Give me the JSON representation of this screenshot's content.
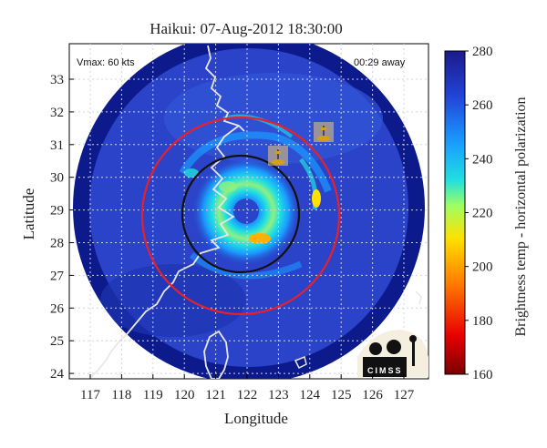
{
  "map": {
    "title": "Haikui: 07-Aug-2012 18:30:00",
    "xlabel": "Longitude",
    "ylabel": "Latitude",
    "vmax_label": "Vmax: 60 kts",
    "time_label": "00:29 away",
    "logo_text": "CIMSS",
    "x_ticks": [
      "117",
      "118",
      "119",
      "120",
      "121",
      "122",
      "123",
      "124",
      "125",
      "126",
      "127"
    ],
    "y_ticks": [
      "33",
      "32",
      "31",
      "30",
      "29",
      "28",
      "27",
      "26",
      "25",
      "24"
    ],
    "lon_range": [
      116.4,
      127.8
    ],
    "lat_range": [
      23.8,
      33.7
    ],
    "storm_center": {
      "lon": 121.9,
      "lat": 28.9
    },
    "background_color": "#2a43c8",
    "outer_color": "#0c1a8c",
    "red_circle_color": "#e8202a",
    "black_circle_color": "#111111"
  },
  "colorbar": {
    "label": "Brightness temp - horizontal polarization",
    "ticks": [
      "280",
      "260",
      "240",
      "220",
      "200",
      "180",
      "160"
    ],
    "min": 160,
    "max": 280,
    "colors": [
      "#7a0000",
      "#e80000",
      "#ff7a00",
      "#ffe000",
      "#a0ff60",
      "#20e0e0",
      "#1a9aff",
      "#2244d8",
      "#1a1a8a"
    ]
  },
  "markers": [
    {
      "name": "buoy-icon",
      "lon": 124.4,
      "lat": 30.8
    },
    {
      "name": "buoy-icon",
      "lon": 123.0,
      "lat": 29.9
    }
  ]
}
